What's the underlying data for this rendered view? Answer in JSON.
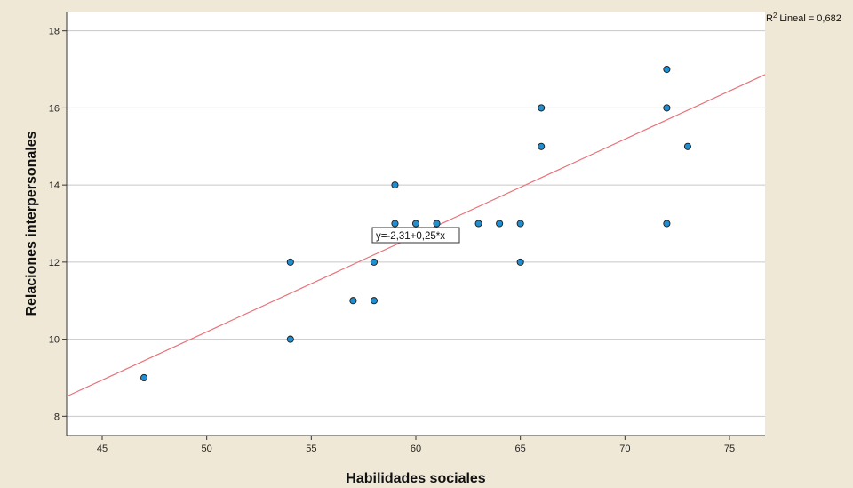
{
  "chart_data": {
    "type": "scatter",
    "title": "",
    "xlabel": "Habilidades sociales",
    "ylabel": "Relaciones interpersonales",
    "xlim": [
      43.3,
      76.7
    ],
    "ylim": [
      7.5,
      18.5
    ],
    "x_ticks": [
      45,
      50,
      55,
      60,
      65,
      70,
      75
    ],
    "y_ticks": [
      8,
      10,
      12,
      14,
      16,
      18
    ],
    "grid": "horizontal",
    "points": [
      {
        "x": 47,
        "y": 9
      },
      {
        "x": 54,
        "y": 12
      },
      {
        "x": 54,
        "y": 10
      },
      {
        "x": 57,
        "y": 11
      },
      {
        "x": 58,
        "y": 12
      },
      {
        "x": 58,
        "y": 11
      },
      {
        "x": 59,
        "y": 14
      },
      {
        "x": 59,
        "y": 13
      },
      {
        "x": 60,
        "y": 13
      },
      {
        "x": 61,
        "y": 13
      },
      {
        "x": 63,
        "y": 13
      },
      {
        "x": 64,
        "y": 13
      },
      {
        "x": 65,
        "y": 13
      },
      {
        "x": 65,
        "y": 12
      },
      {
        "x": 66,
        "y": 16
      },
      {
        "x": 66,
        "y": 15
      },
      {
        "x": 72,
        "y": 17
      },
      {
        "x": 72,
        "y": 16
      },
      {
        "x": 72,
        "y": 13
      },
      {
        "x": 73,
        "y": 15
      }
    ],
    "fit_line": {
      "intercept": -2.31,
      "slope": 0.25
    },
    "fit_equation_label": "y=-2,31+0,25*x",
    "r2_label": "Lineal = 0,682",
    "r2_prefix": "R",
    "r2_superscript": "2",
    "colors": {
      "background": "#f0e8d6",
      "plot_background": "#ffffff",
      "point_fill": "#1f8fd1",
      "point_stroke": "#1a1a1a",
      "fit_line": "#e8737a",
      "grid": "#c8c8c8"
    }
  }
}
